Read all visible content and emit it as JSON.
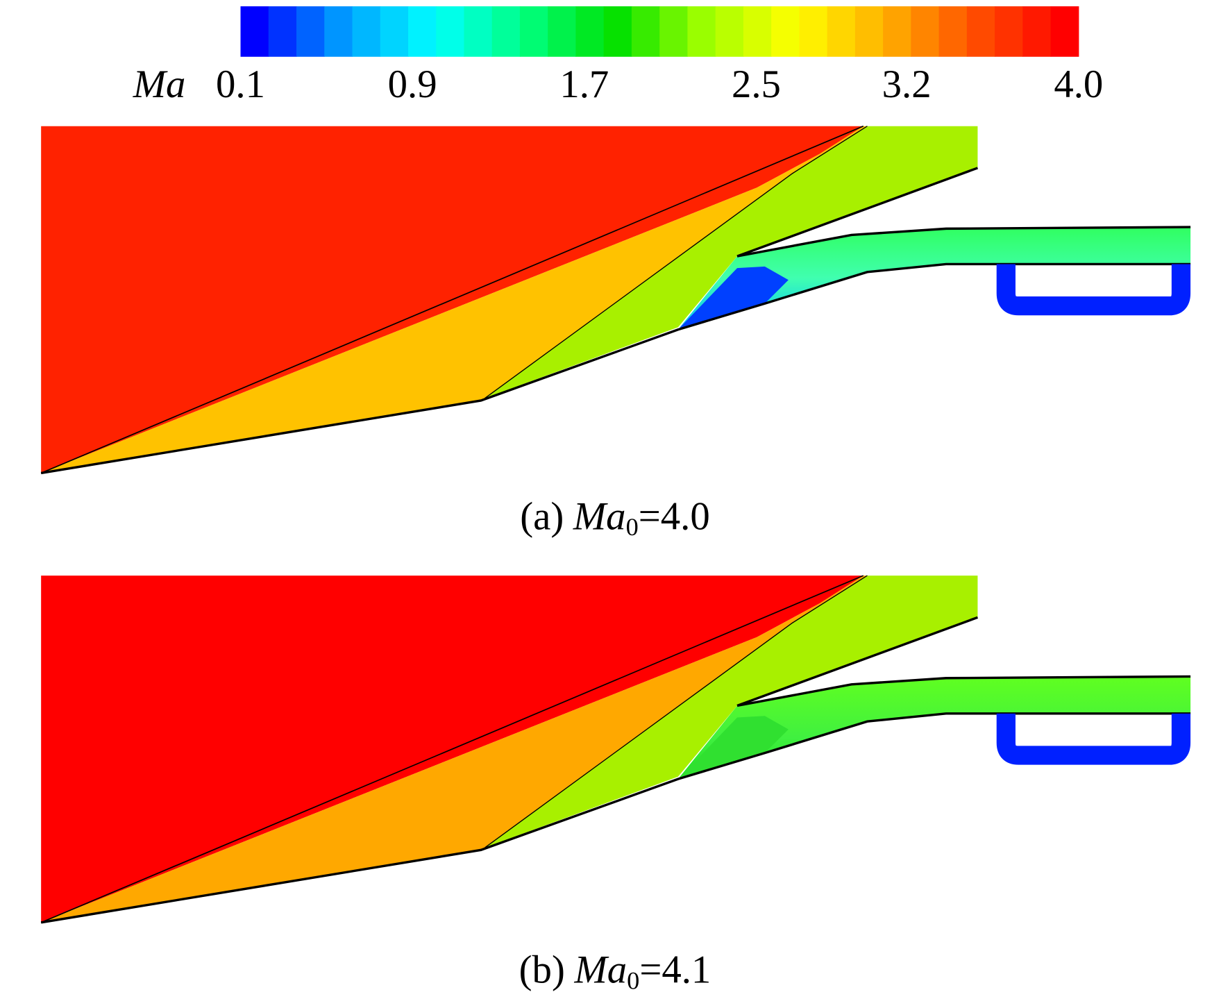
{
  "colorbar": {
    "label": "Ma",
    "clim": [
      0.1,
      4.0
    ],
    "colors": [
      "#0000ff",
      "#00a0ff",
      "#00ffff",
      "#00ff80",
      "#00e000",
      "#a0ff00",
      "#ffff00",
      "#ffb000",
      "#ff5000",
      "#ff0000"
    ],
    "ticks": [
      0.1,
      0.9,
      1.7,
      2.5,
      3.2,
      {
        "value": 4.0,
        "label": "4.0"
      }
    ]
  },
  "panels": [
    {
      "caption": {
        "prefix": "(a)",
        "variable": "Ma",
        "subscript": "0",
        "suffix": "=4.0"
      }
    },
    {
      "caption": {
        "prefix": "(b)",
        "variable": "Ma",
        "subscript": "0",
        "suffix": "=4.1"
      }
    }
  ]
}
